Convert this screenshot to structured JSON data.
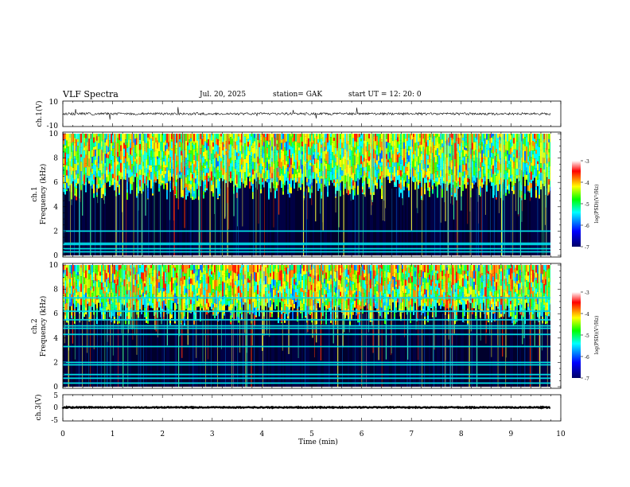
{
  "header": {
    "title": "VLF Spectra",
    "date": "Jul. 20, 2025",
    "station": "station= GAK",
    "start": "start UT = 12: 20: 0"
  },
  "colors": {
    "background": "#ffffff",
    "axis": "#000000",
    "noise_floor": "#000010"
  },
  "chart_data": [
    {
      "type": "line",
      "name": "ch1-waveform",
      "ylabel": "ch.1(V)",
      "ylim": [
        -10,
        10
      ],
      "yticks": [
        10,
        -10
      ],
      "baseline": 0,
      "xlim": [
        0,
        10
      ],
      "xlabel": ""
    },
    {
      "type": "heatmap",
      "name": "ch1-spectrogram",
      "ylabel_line1": "ch.1",
      "ylabel_line2": "Frequency (kHz)",
      "ylim": [
        0,
        10
      ],
      "yticks": [
        "0",
        "2",
        "4",
        "6",
        "8",
        "10"
      ],
      "xlim": [
        0,
        9.85
      ],
      "colorbar": {
        "label": "log(PSD)(V²/Hz)",
        "range": [
          -7,
          -3
        ],
        "ticks": [
          "-3",
          "-4",
          "-5",
          "-6",
          "-7"
        ],
        "colormap": [
          "#000066",
          "#0000ff",
          "#00ffff",
          "#00ff00",
          "#ffff00",
          "#ff0000",
          "#ffffff"
        ]
      },
      "bands_khz": [
        0.3,
        0.55,
        0.9,
        1.0,
        2.0
      ],
      "noise_cutoff_khz": 5.5
    },
    {
      "type": "heatmap",
      "name": "ch2-spectrogram",
      "ylabel_line1": "ch.2",
      "ylabel_line2": "Frequency (kHz)",
      "ylim": [
        0,
        10
      ],
      "yticks": [
        "0",
        "2",
        "4",
        "6",
        "8",
        "10"
      ],
      "xlim": [
        0,
        9.85
      ],
      "colorbar": {
        "label": "log(PSD)(V²/Hz)",
        "range": [
          -7,
          -3
        ],
        "ticks": [
          "-3",
          "-4",
          "-5",
          "-6",
          "-7"
        ],
        "colormap": [
          "#000066",
          "#0000ff",
          "#00ffff",
          "#00ff00",
          "#ffff00",
          "#ff0000",
          "#ffffff"
        ]
      },
      "bands_khz": [
        0.3,
        0.7,
        1.0,
        1.8,
        2.0,
        3.3,
        4.3,
        4.8,
        5.0,
        5.5,
        6.2,
        7.3
      ],
      "noise_cutoff_khz": 6.0
    },
    {
      "type": "line",
      "name": "ch3-waveform",
      "ylabel": "ch.3(V)",
      "ylim": [
        -5,
        5
      ],
      "yticks": [
        "5",
        "0",
        "-5"
      ],
      "baseline": -1,
      "xlim": [
        0,
        9.85
      ],
      "xlabel": "Time (min)",
      "xticks": [
        "0",
        "1",
        "2",
        "3",
        "4",
        "5",
        "6",
        "7",
        "8",
        "9",
        "10"
      ],
      "xrange": [
        0,
        10
      ]
    }
  ]
}
